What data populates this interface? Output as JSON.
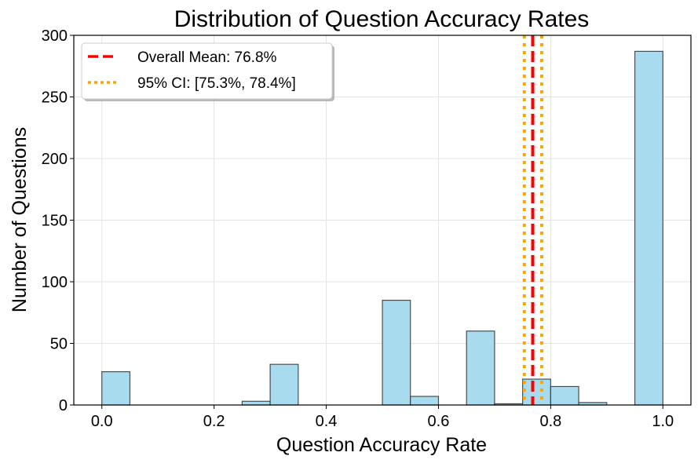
{
  "chart_data": {
    "type": "bar",
    "title": "Distribution of Question Accuracy Rates",
    "xlabel": "Question Accuracy Rate",
    "ylabel": "Number of Questions",
    "xlim": [
      -0.05,
      1.05
    ],
    "ylim": [
      0,
      300
    ],
    "xticks": [
      "0.0",
      "0.2",
      "0.4",
      "0.6",
      "0.8",
      "1.0"
    ],
    "yticks": [
      "0",
      "50",
      "100",
      "150",
      "200",
      "250",
      "300"
    ],
    "grid": true,
    "legend_position": "top-left",
    "bin_width": 0.05,
    "bins": [
      {
        "start": 0.0,
        "count": 27
      },
      {
        "start": 0.05,
        "count": 0
      },
      {
        "start": 0.1,
        "count": 0
      },
      {
        "start": 0.15,
        "count": 0
      },
      {
        "start": 0.2,
        "count": 0
      },
      {
        "start": 0.25,
        "count": 3
      },
      {
        "start": 0.3,
        "count": 33
      },
      {
        "start": 0.35,
        "count": 0
      },
      {
        "start": 0.4,
        "count": 0
      },
      {
        "start": 0.45,
        "count": 0
      },
      {
        "start": 0.5,
        "count": 85
      },
      {
        "start": 0.55,
        "count": 7
      },
      {
        "start": 0.6,
        "count": 0
      },
      {
        "start": 0.65,
        "count": 60
      },
      {
        "start": 0.7,
        "count": 1
      },
      {
        "start": 0.75,
        "count": 21
      },
      {
        "start": 0.8,
        "count": 15
      },
      {
        "start": 0.85,
        "count": 2
      },
      {
        "start": 0.9,
        "count": 0
      },
      {
        "start": 0.95,
        "count": 287
      }
    ],
    "reference_lines": [
      {
        "name": "Overall Mean: 76.8%",
        "x": 0.768,
        "style": "dashed",
        "color": "#ff0000"
      },
      {
        "name": "95% CI: [75.3%, 78.4%]",
        "x": [
          0.753,
          0.784
        ],
        "style": "dotted",
        "color": "#ffa500"
      }
    ],
    "bar_color": "#a8dbee",
    "bar_edge_color": "#333333"
  }
}
